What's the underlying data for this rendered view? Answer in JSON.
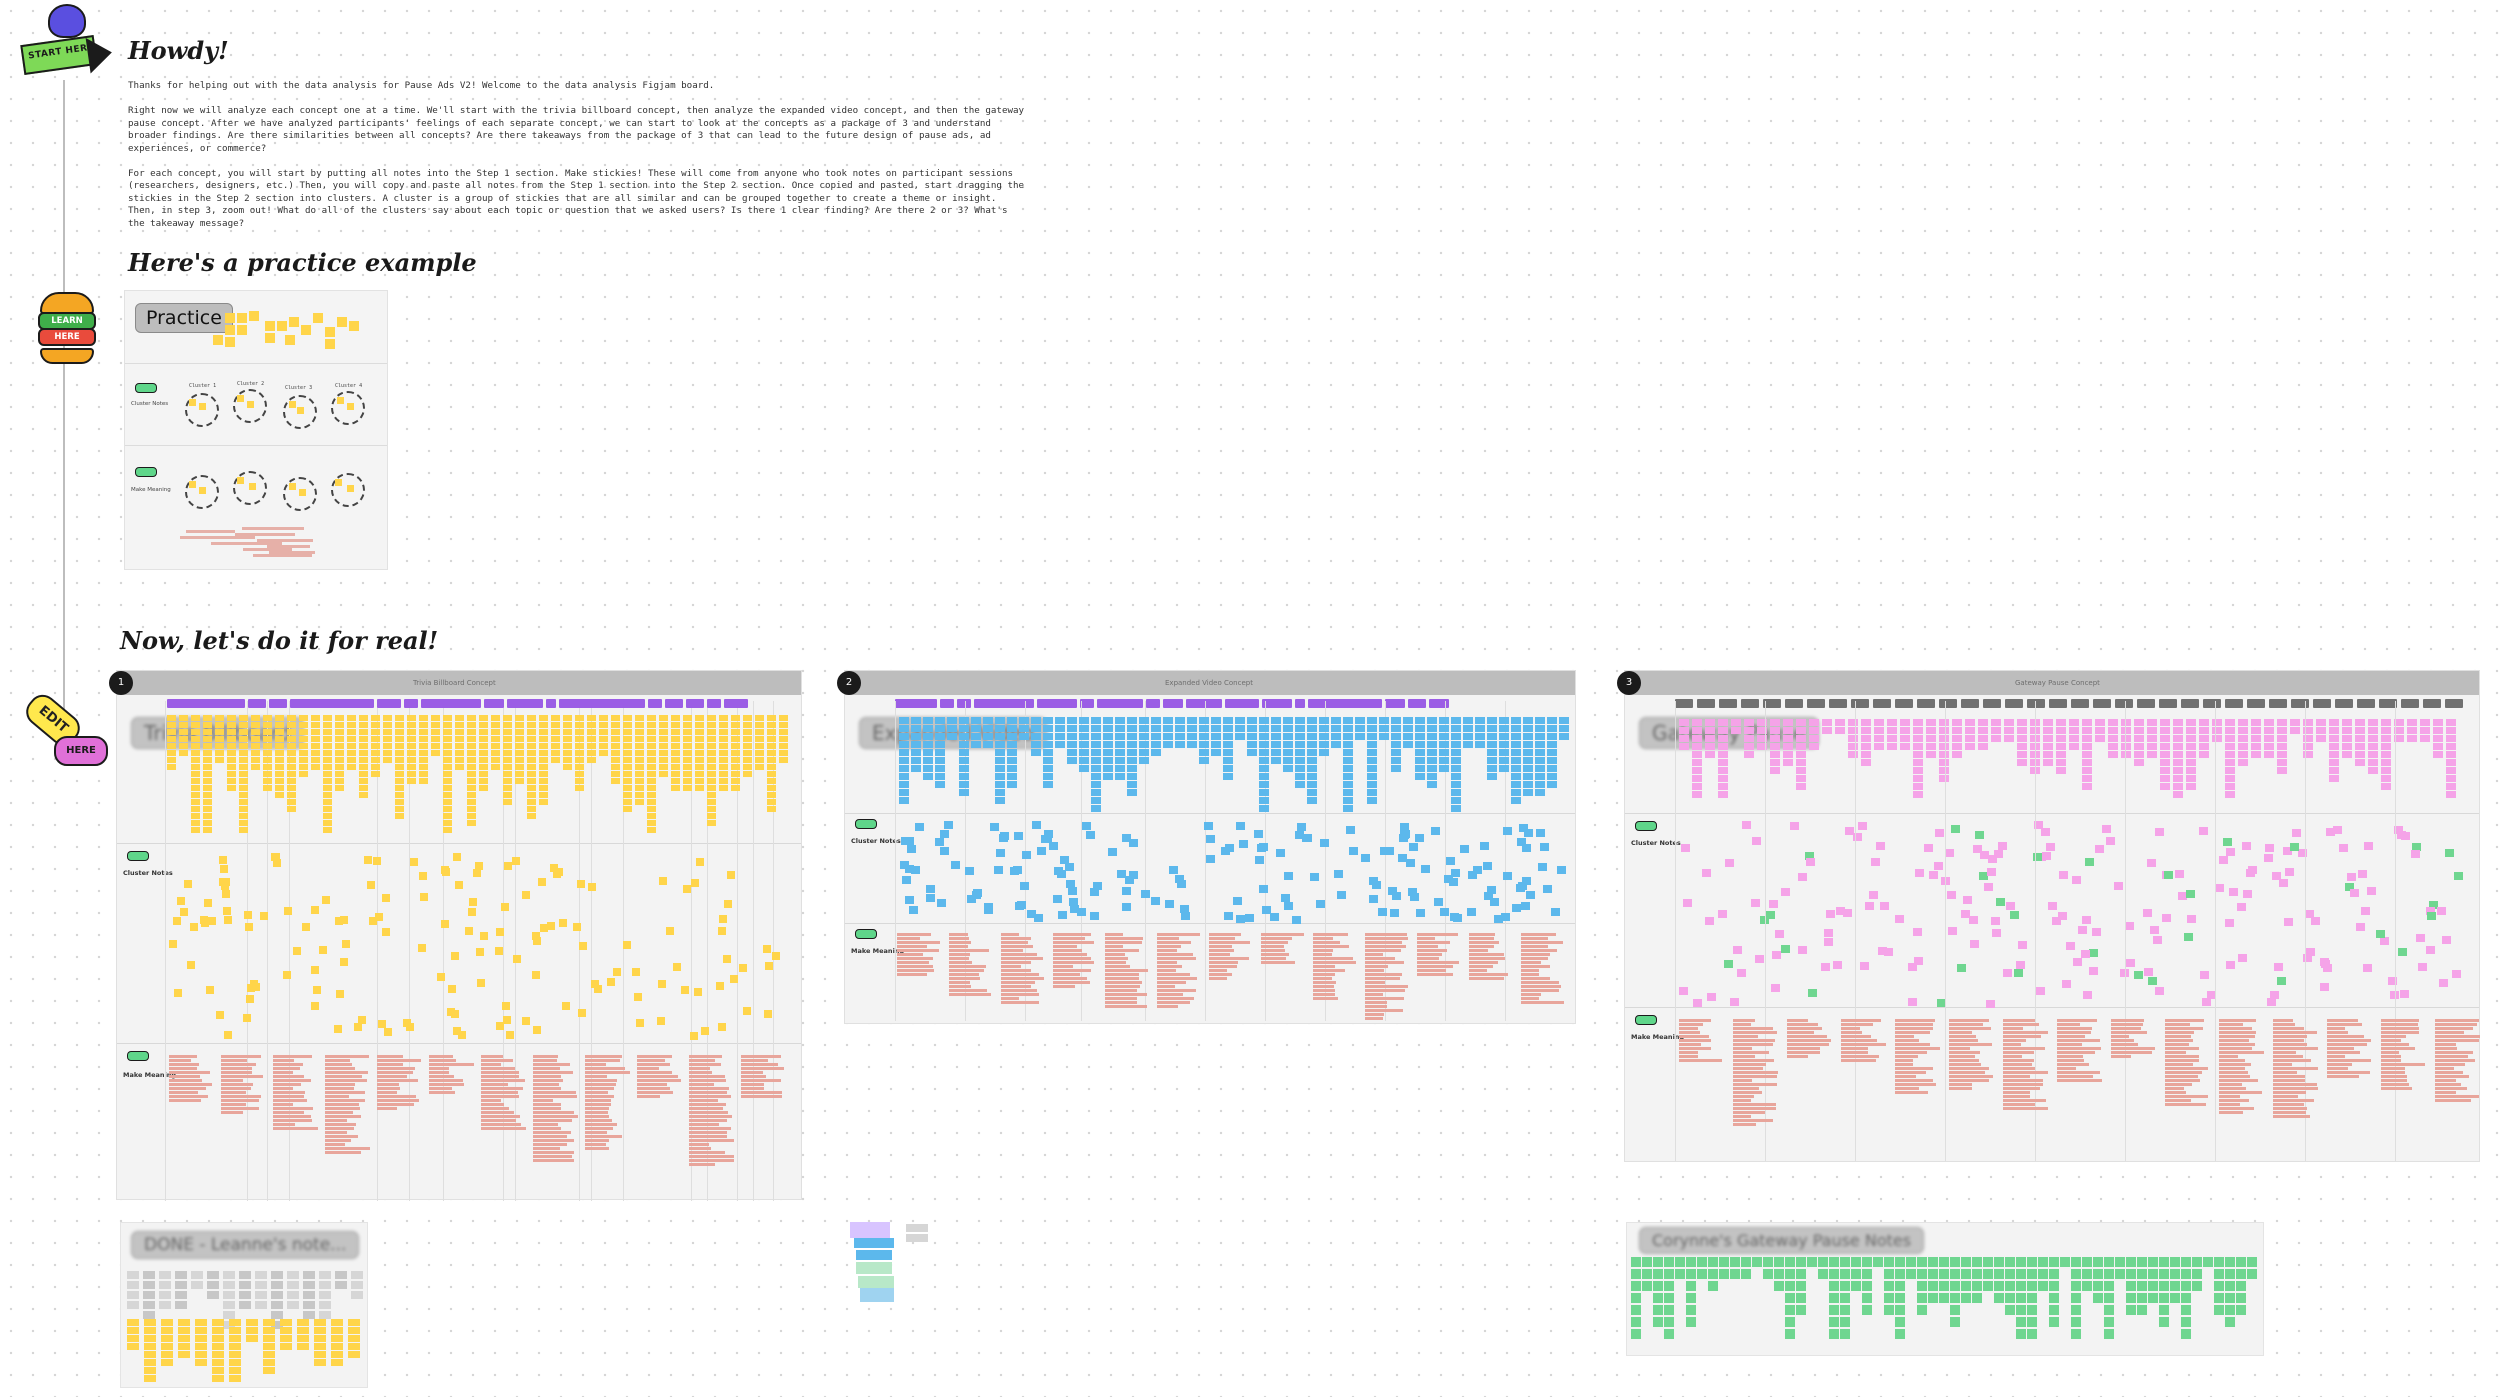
{
  "stickers": {
    "start": "START HERE",
    "learn": "LEARN",
    "here_learn": "HERE",
    "edit": "EDIT",
    "here_edit": "HERE"
  },
  "intro": {
    "title": "Howdy!",
    "p1": "Thanks for helping out with the data analysis for Pause Ads V2! Welcome to the data analysis Figjam board.",
    "p2": "Right now we will analyze each concept one at a time. We'll start with the trivia billboard concept, then analyze the expanded video concept, and then the gateway pause concept. After we have analyzed participants' feelings of each separate concept, we can start to look at the concepts as a package of 3 and understand broader findings. Are there similarities between all concepts? Are there takeaways from the package of 3 that can lead to the future design of pause ads, ad experiences, or commerce?",
    "p3": "For each concept, you will start by putting all notes into the Step 1 section. Make stickies! These will come from anyone who took notes on participant sessions (researchers, designers, etc.) Then, you will copy and paste all notes from the Step 1 section into the Step 2 section. Once copied and pasted, start dragging the stickies in the Step 2 section into clusters. A cluster is a group of stickies that are all similar and can be grouped together to create a theme or insight. Then, in step 3, zoom out! What do all of the clusters say about each topic or question that we asked users? Is there 1 clear finding? Are there 2 or 3? What's the takeaway message?"
  },
  "practice_heading": "Here's a practice example",
  "practice": {
    "label": "Practice",
    "cluster_notes": "Cluster Notes",
    "make_meaning": "Make Meaning",
    "clusters": [
      "Cluster 1",
      "Cluster 2",
      "Cluster 3",
      "Cluster 4"
    ]
  },
  "real_heading": "Now, let's do it for real!",
  "boards": [
    {
      "number": "1",
      "label": "Trivia Billboard",
      "header": "Trivia Billboard Concept",
      "cluster_notes": "Cluster Notes",
      "make_meaning": "Make Meaning"
    },
    {
      "number": "2",
      "label": "Expanded Video",
      "header": "Expanded Video Concept",
      "cluster_notes": "Cluster Notes",
      "make_meaning": "Make Meaning"
    },
    {
      "number": "3",
      "label": "Gateway Pause",
      "header": "Gateway Pause Concept",
      "cluster_notes": "Cluster Notes",
      "make_meaning": "Make Meaning"
    }
  ],
  "bottom_notes": {
    "leanne": "DONE - Leanne's note...",
    "corynne": "Corynne's Gateway Pause Notes"
  },
  "colors": {
    "yellow_sticky": "#ffd54a",
    "blue_sticky": "#5cb8ec",
    "pink_sticky": "#f5a3e8",
    "green_sticky": "#6fd690",
    "purple_category": "#9b5de5",
    "gray_header": "#bdbdbd"
  }
}
